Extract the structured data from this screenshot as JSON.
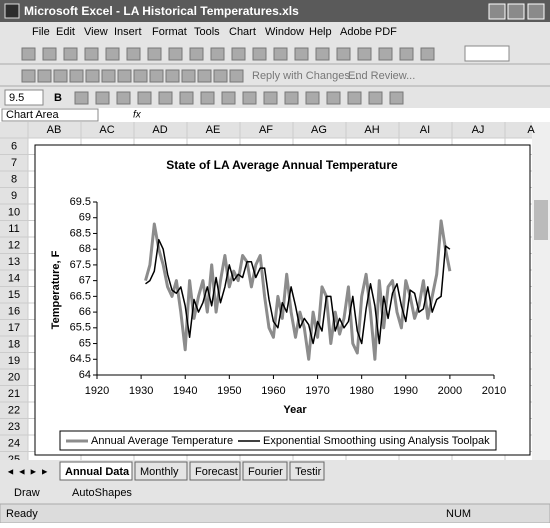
{
  "window": {
    "title": "Microsoft Excel - LA Historical Temperatures.xls"
  },
  "menu": [
    "File",
    "Edit",
    "View",
    "Insert",
    "Format",
    "Tools",
    "Chart",
    "Window",
    "Help",
    "Adobe PDF"
  ],
  "toolbar": {
    "reviewing": [
      "Reply with Changes...",
      "End Review..."
    ],
    "font_size": "9.5",
    "bold": "B"
  },
  "name_box": "Chart Area",
  "formula_label": "fx",
  "columns": [
    "AB",
    "AC",
    "AD",
    "AE",
    "AF",
    "AG",
    "AH",
    "AI",
    "AJ",
    "A"
  ],
  "rows": [
    6,
    7,
    8,
    9,
    10,
    11,
    12,
    13,
    14,
    15,
    16,
    17,
    18,
    19,
    20,
    21,
    22,
    23,
    24,
    25
  ],
  "chart_data": {
    "type": "line",
    "title": "State of LA Average Annual Temperature",
    "x_label": "Year",
    "y_label": "Temperature, F",
    "x": [
      1931,
      1932,
      1933,
      1934,
      1935,
      1936,
      1937,
      1938,
      1939,
      1940,
      1941,
      1942,
      1943,
      1944,
      1945,
      1946,
      1947,
      1948,
      1949,
      1950,
      1951,
      1952,
      1953,
      1954,
      1955,
      1956,
      1957,
      1958,
      1959,
      1960,
      1961,
      1962,
      1963,
      1964,
      1965,
      1966,
      1967,
      1968,
      1969,
      1970,
      1971,
      1972,
      1973,
      1974,
      1975,
      1976,
      1977,
      1978,
      1979,
      1980,
      1981,
      1982,
      1983,
      1984,
      1985,
      1986,
      1987,
      1988,
      1989,
      1990,
      1991,
      1992,
      1993,
      1994,
      1995,
      1996,
      1997,
      1998,
      1999,
      2000
    ],
    "series": [
      {
        "name": "Annual Average Temperature",
        "color": "#8c8c8c",
        "values": [
          67.0,
          67.5,
          68.8,
          68.0,
          67.5,
          66.8,
          66.5,
          67.0,
          66.0,
          64.8,
          67.0,
          65.8,
          66.5,
          67.0,
          66.0,
          67.5,
          66.0,
          67.0,
          67.8,
          66.8,
          67.3,
          67.0,
          67.8,
          67.6,
          66.8,
          67.5,
          67.8,
          66.5,
          65.5,
          65.2,
          66.5,
          65.8,
          67.2,
          66.0,
          65.2,
          66.0,
          65.5,
          64.5,
          66.0,
          65.2,
          66.8,
          66.5,
          65.0,
          66.0,
          65.3,
          65.8,
          66.8,
          65.0,
          64.7,
          66.5,
          67.2,
          66.0,
          64.5,
          67.0,
          65.5,
          66.8,
          67.0,
          66.0,
          65.5,
          67.0,
          66.5,
          65.8,
          66.2,
          67.0,
          65.8,
          66.5,
          67.2,
          68.9,
          68.0,
          67.3
        ]
      },
      {
        "name": "Exponential Smoothing using Analysis Toolpak",
        "color": "#000000",
        "values": [
          66.9,
          67.0,
          67.3,
          68.3,
          68.0,
          67.2,
          66.7,
          66.6,
          66.8,
          66.2,
          65.2,
          66.4,
          66.0,
          66.3,
          66.8,
          66.2,
          67.1,
          66.3,
          66.8,
          67.5,
          67.0,
          67.2,
          67.1,
          67.6,
          67.6,
          67.1,
          67.4,
          67.4,
          66.4,
          65.7,
          65.5,
          66.3,
          66.0,
          66.8,
          66.2,
          65.5,
          65.8,
          65.6,
          65.0,
          65.7,
          65.4,
          66.5,
          66.5,
          65.4,
          65.8,
          65.5,
          65.7,
          66.5,
          65.4,
          65.0,
          66.1,
          66.9,
          66.2,
          65.0,
          66.5,
          65.8,
          66.6,
          66.9,
          66.2,
          65.7,
          66.7,
          66.6,
          66.0,
          66.1,
          66.8,
          66.0,
          66.4,
          66.5,
          68.1,
          68.0
        ]
      }
    ],
    "xlim": [
      1920,
      2010
    ],
    "xticks": [
      1920,
      1930,
      1940,
      1950,
      1960,
      1970,
      1980,
      1990,
      2000,
      2010
    ],
    "ylim": [
      64,
      69.5
    ],
    "yticks": [
      64,
      64.5,
      65,
      65.5,
      66,
      66.5,
      67,
      67.5,
      68,
      68.5,
      69,
      69.5
    ],
    "grid": false,
    "legend": "bottom"
  },
  "sheet_tabs": [
    "Annual Data",
    "Monthly",
    "Forecast",
    "Fourier",
    "Testir"
  ],
  "drawing_toolbar": {
    "draw": "Draw",
    "autoshapes": "AutoShapes"
  },
  "status": {
    "left": "Ready",
    "num": "NUM"
  }
}
